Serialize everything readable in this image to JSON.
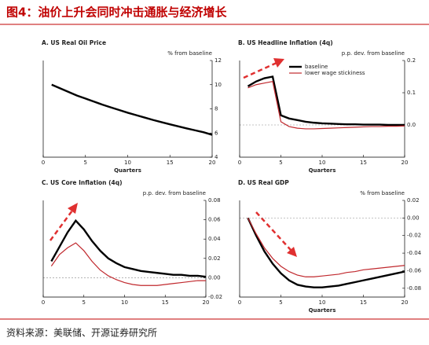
{
  "title": "图4：油价上升会同时冲击通胀与经济增长",
  "source": "资料来源：美联储、开源证券研究所",
  "chart_data": [
    {
      "type": "line",
      "title": "A. US Real Oil Price",
      "y_label": "% from baseline",
      "x_label": "Quarters",
      "x": [
        1,
        2,
        3,
        4,
        5,
        6,
        7,
        8,
        9,
        10,
        11,
        12,
        13,
        14,
        15,
        16,
        17,
        18,
        19,
        20
      ],
      "series": [
        {
          "color": "#000000",
          "values": [
            10,
            9.7,
            9.4,
            9.1,
            8.85,
            8.6,
            8.35,
            8.12,
            7.9,
            7.68,
            7.48,
            7.28,
            7.08,
            6.9,
            6.72,
            6.55,
            6.38,
            6.22,
            6.06,
            5.85
          ]
        }
      ],
      "xlim": [
        0,
        20
      ],
      "xticks": [
        0,
        5,
        10,
        15,
        20
      ],
      "ylim": [
        4,
        12
      ],
      "yticks": [
        4,
        6,
        8,
        10,
        12
      ],
      "y_axis_side": "right",
      "zero_line": false
    },
    {
      "type": "line",
      "title": "B. US Headline Inflation (4q)",
      "y_label": "p.p. dev. from baseline",
      "x_label": "Quarters",
      "x": [
        1,
        2,
        3,
        4,
        5,
        6,
        7,
        8,
        9,
        10,
        11,
        12,
        13,
        14,
        15,
        16,
        17,
        18,
        19,
        20
      ],
      "series": [
        {
          "name": "baseline",
          "color": "#000000",
          "values": [
            0.12,
            0.135,
            0.145,
            0.15,
            0.03,
            0.02,
            0.015,
            0.01,
            0.007,
            0.005,
            0.004,
            0.003,
            0.002,
            0.002,
            0.001,
            0.001,
            0.001,
            0,
            0,
            0
          ]
        },
        {
          "name": "lower wage stickiness",
          "color": "#c0282d",
          "values": [
            0.115,
            0.125,
            0.13,
            0.135,
            0.01,
            -0.005,
            -0.01,
            -0.012,
            -0.012,
            -0.011,
            -0.01,
            -0.009,
            -0.008,
            -0.007,
            -0.006,
            -0.005,
            -0.005,
            -0.004,
            -0.004,
            -0.003
          ]
        }
      ],
      "xlim": [
        0,
        20
      ],
      "xticks": [
        0,
        5,
        10,
        15,
        20
      ],
      "ylim": [
        -0.1,
        0.2
      ],
      "yticks": [
        {
          "value": 0,
          "label": "0.0"
        },
        0.1,
        0.2
      ],
      "y_axis_side": "right",
      "zero_line": true,
      "legend": "top"
    },
    {
      "type": "line",
      "title": "C. US Core Inflation (4q)",
      "y_label": "p.p. dev. from baseline",
      "x": [
        1,
        2,
        3,
        4,
        5,
        6,
        7,
        8,
        9,
        10,
        11,
        12,
        13,
        14,
        15,
        16,
        17,
        18,
        19,
        20
      ],
      "series": [
        {
          "color": "#000000",
          "values": [
            0.017,
            0.032,
            0.047,
            0.059,
            0.05,
            0.038,
            0.028,
            0.02,
            0.015,
            0.011,
            0.009,
            0.007,
            0.006,
            0.005,
            0.004,
            0.003,
            0.003,
            0.002,
            0.002,
            0.001
          ]
        },
        {
          "color": "#c0282d",
          "values": [
            0.012,
            0.024,
            0.031,
            0.036,
            0.028,
            0.017,
            0.008,
            0.002,
            -0.002,
            -0.005,
            -0.007,
            -0.008,
            -0.008,
            -0.008,
            -0.007,
            -0.006,
            -0.005,
            -0.004,
            -0.003,
            -0.003
          ]
        }
      ],
      "xlim": [
        0,
        20
      ],
      "xticks": [
        0,
        5,
        10,
        15,
        20
      ],
      "ylim": [
        -0.02,
        0.08
      ],
      "yticks": [
        -0.02,
        {
          "value": 0,
          "label": "0.00"
        },
        0.02,
        0.04,
        0.06,
        0.08
      ],
      "y_axis_side": "right",
      "zero_line": true
    },
    {
      "type": "line",
      "title": "D. US Real GDP",
      "y_label": "% from baseline",
      "x_label": "Quarters",
      "x": [
        1,
        2,
        3,
        4,
        5,
        6,
        7,
        8,
        9,
        10,
        11,
        12,
        13,
        14,
        15,
        16,
        17,
        18,
        19,
        20
      ],
      "series": [
        {
          "color": "#000000",
          "values": [
            0,
            -0.02,
            -0.038,
            -0.052,
            -0.063,
            -0.071,
            -0.076,
            -0.078,
            -0.079,
            -0.079,
            -0.078,
            -0.077,
            -0.075,
            -0.073,
            -0.071,
            -0.069,
            -0.067,
            -0.065,
            -0.063,
            -0.061
          ]
        },
        {
          "color": "#c0282d",
          "values": [
            0,
            -0.018,
            -0.034,
            -0.046,
            -0.055,
            -0.061,
            -0.065,
            -0.067,
            -0.067,
            -0.066,
            -0.065,
            -0.064,
            -0.062,
            -0.061,
            -0.059,
            -0.058,
            -0.057,
            -0.056,
            -0.055,
            -0.054
          ]
        }
      ],
      "xlim": [
        0,
        20
      ],
      "xticks": [
        0,
        5,
        10,
        15,
        20
      ],
      "ylim": [
        -0.09,
        0.02
      ],
      "yticks": [
        0.02,
        {
          "value": 0,
          "label": "0.00"
        },
        -0.02,
        -0.04,
        -0.06,
        -0.08
      ],
      "y_axis_side": "right",
      "zero_line": true
    }
  ]
}
